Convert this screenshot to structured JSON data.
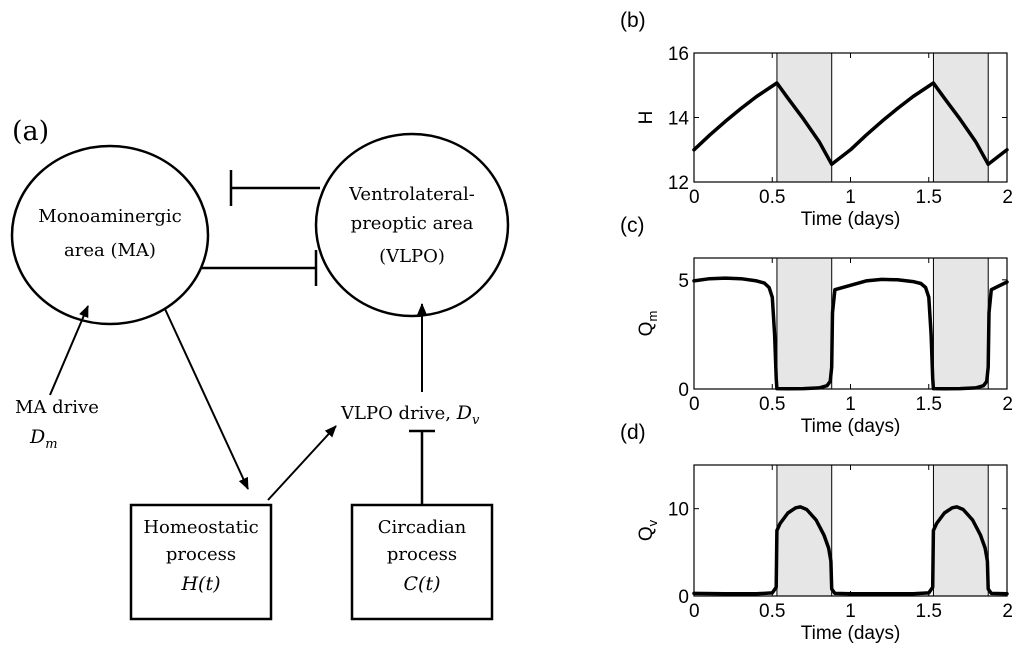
{
  "diagram": {
    "panel_label": "(a)",
    "ma_node": {
      "line1": "Monoaminergic",
      "line2": "area (MA)"
    },
    "vlpo_node": {
      "line1": "Ventrolateral-",
      "line2": "preoptic area",
      "line3": "(VLPO)"
    },
    "ma_drive": {
      "line1": "MA drive",
      "symbol": "D",
      "subscript": "m"
    },
    "vlpo_drive": {
      "text": "VLPO drive, ",
      "symbol": "D",
      "subscript": "v"
    },
    "homeostatic_node": {
      "line1": "Homeostatic",
      "line2": "process",
      "line3": "H(t)"
    },
    "circadian_node": {
      "line1": "Circadian",
      "line2": "process",
      "line3": "C(t)"
    }
  },
  "chart_data": [
    {
      "panel": "(b)",
      "type": "line",
      "ylabel": "H",
      "ylabel_sub": "",
      "xlabel": "Time (days)",
      "xlim": [
        0,
        2
      ],
      "ylim": [
        12,
        16
      ],
      "xticks": [
        0,
        0.5,
        1,
        1.5,
        2
      ],
      "xtick_labels": [
        "0",
        "0.5",
        "1",
        "1.5",
        "2"
      ],
      "yticks": [
        12,
        14,
        16
      ],
      "ytick_labels": [
        "12",
        "14",
        "16"
      ],
      "shaded_intervals": [
        [
          0.53,
          0.88
        ],
        [
          1.53,
          1.88
        ]
      ],
      "x": [
        0,
        0.1,
        0.2,
        0.3,
        0.4,
        0.53,
        0.6,
        0.7,
        0.8,
        0.88,
        1.0,
        1.1,
        1.2,
        1.3,
        1.4,
        1.53,
        1.6,
        1.7,
        1.8,
        1.88,
        2.0
      ],
      "y": [
        13.0,
        13.45,
        13.88,
        14.28,
        14.65,
        15.07,
        14.6,
        13.95,
        13.25,
        12.55,
        13.0,
        13.45,
        13.88,
        14.28,
        14.65,
        15.07,
        14.6,
        13.95,
        13.25,
        12.55,
        13.0
      ]
    },
    {
      "panel": "(c)",
      "type": "line",
      "ylabel": "Q",
      "ylabel_sub": "m",
      "xlabel": "Time (days)",
      "xlim": [
        0,
        2
      ],
      "ylim": [
        0,
        6
      ],
      "xticks": [
        0,
        0.5,
        1,
        1.5,
        2
      ],
      "xtick_labels": [
        "0",
        "0.5",
        "1",
        "1.5",
        "2"
      ],
      "yticks": [
        0,
        5
      ],
      "ytick_labels": [
        "0",
        "5"
      ],
      "shaded_intervals": [
        [
          0.53,
          0.88
        ],
        [
          1.53,
          1.88
        ]
      ],
      "x": [
        0,
        0.1,
        0.2,
        0.3,
        0.4,
        0.45,
        0.48,
        0.5,
        0.515,
        0.525,
        0.53,
        0.6,
        0.7,
        0.8,
        0.85,
        0.87,
        0.88,
        0.885,
        0.9,
        1.0,
        1.1,
        1.2,
        1.3,
        1.4,
        1.45,
        1.48,
        1.5,
        1.515,
        1.525,
        1.53,
        1.6,
        1.7,
        1.8,
        1.85,
        1.87,
        1.88,
        1.885,
        1.9,
        2.0
      ],
      "y": [
        4.95,
        5.05,
        5.08,
        5.05,
        4.95,
        4.85,
        4.65,
        4.2,
        2.5,
        0.5,
        0.02,
        0.01,
        0.02,
        0.05,
        0.15,
        0.35,
        1.0,
        3.5,
        4.55,
        4.75,
        4.95,
        5.02,
        5.0,
        4.92,
        4.83,
        4.65,
        4.2,
        2.5,
        0.5,
        0.02,
        0.01,
        0.02,
        0.05,
        0.15,
        0.35,
        1.0,
        3.5,
        4.55,
        4.9
      ]
    },
    {
      "panel": "(d)",
      "type": "line",
      "ylabel": "Q",
      "ylabel_sub": "v",
      "xlabel": "Time (days)",
      "xlim": [
        0,
        2
      ],
      "ylim": [
        0,
        15
      ],
      "xticks": [
        0,
        0.5,
        1,
        1.5,
        2
      ],
      "xtick_labels": [
        "0",
        "0.5",
        "1",
        "1.5",
        "2"
      ],
      "yticks": [
        0,
        10
      ],
      "ytick_labels": [
        "0",
        "10"
      ],
      "shaded_intervals": [
        [
          0.53,
          0.88
        ],
        [
          1.53,
          1.88
        ]
      ],
      "x": [
        0,
        0.2,
        0.4,
        0.5,
        0.525,
        0.53,
        0.55,
        0.6,
        0.65,
        0.68,
        0.72,
        0.78,
        0.83,
        0.86,
        0.875,
        0.88,
        0.9,
        1.0,
        1.2,
        1.4,
        1.5,
        1.525,
        1.53,
        1.55,
        1.6,
        1.65,
        1.68,
        1.72,
        1.78,
        1.83,
        1.86,
        1.875,
        1.88,
        1.9,
        2.0
      ],
      "y": [
        0.3,
        0.25,
        0.25,
        0.35,
        1.0,
        7.5,
        8.3,
        9.5,
        10.1,
        10.2,
        9.9,
        8.7,
        7.0,
        5.5,
        4.0,
        0.8,
        0.3,
        0.25,
        0.25,
        0.25,
        0.35,
        1.0,
        7.5,
        8.3,
        9.5,
        10.1,
        10.2,
        9.9,
        8.7,
        7.0,
        5.5,
        4.0,
        0.8,
        0.3,
        0.25
      ]
    }
  ]
}
